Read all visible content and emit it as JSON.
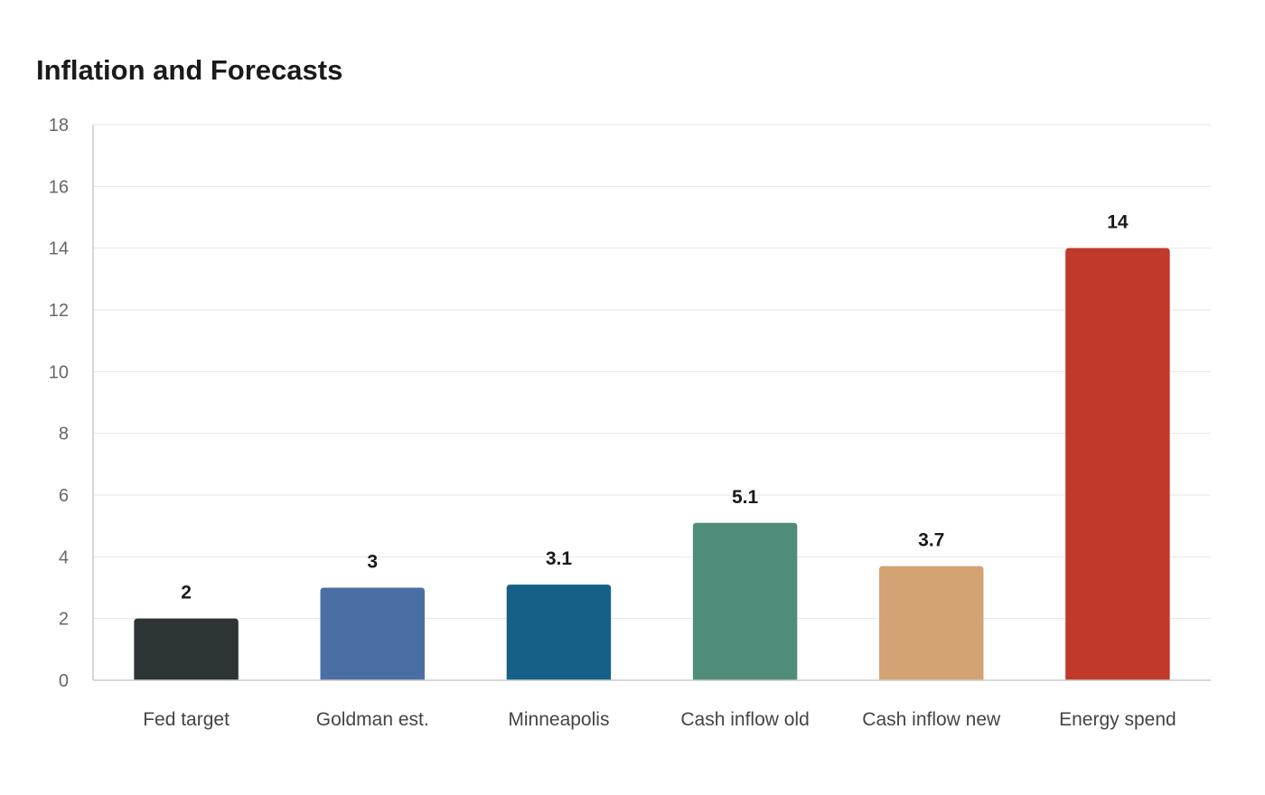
{
  "chart_data": {
    "type": "bar",
    "title": "Inflation and Forecasts",
    "xlabel": "",
    "ylabel": "",
    "categories": [
      "Fed target",
      "Goldman est.",
      "Minneapolis",
      "Cash inflow old",
      "Cash inflow new",
      "Energy spend"
    ],
    "values": [
      2,
      3,
      3.1,
      5.1,
      3.7,
      14
    ],
    "colors": [
      "#2d3436",
      "#4a6fa5",
      "#166088",
      "#4f8d7a",
      "#d4a373",
      "#c0392b"
    ],
    "ylim": [
      0,
      18
    ],
    "yticks": [
      0,
      2,
      4,
      6,
      8,
      10,
      12,
      14,
      16,
      18
    ],
    "grid": true,
    "data_labels": true,
    "legend": "none"
  }
}
